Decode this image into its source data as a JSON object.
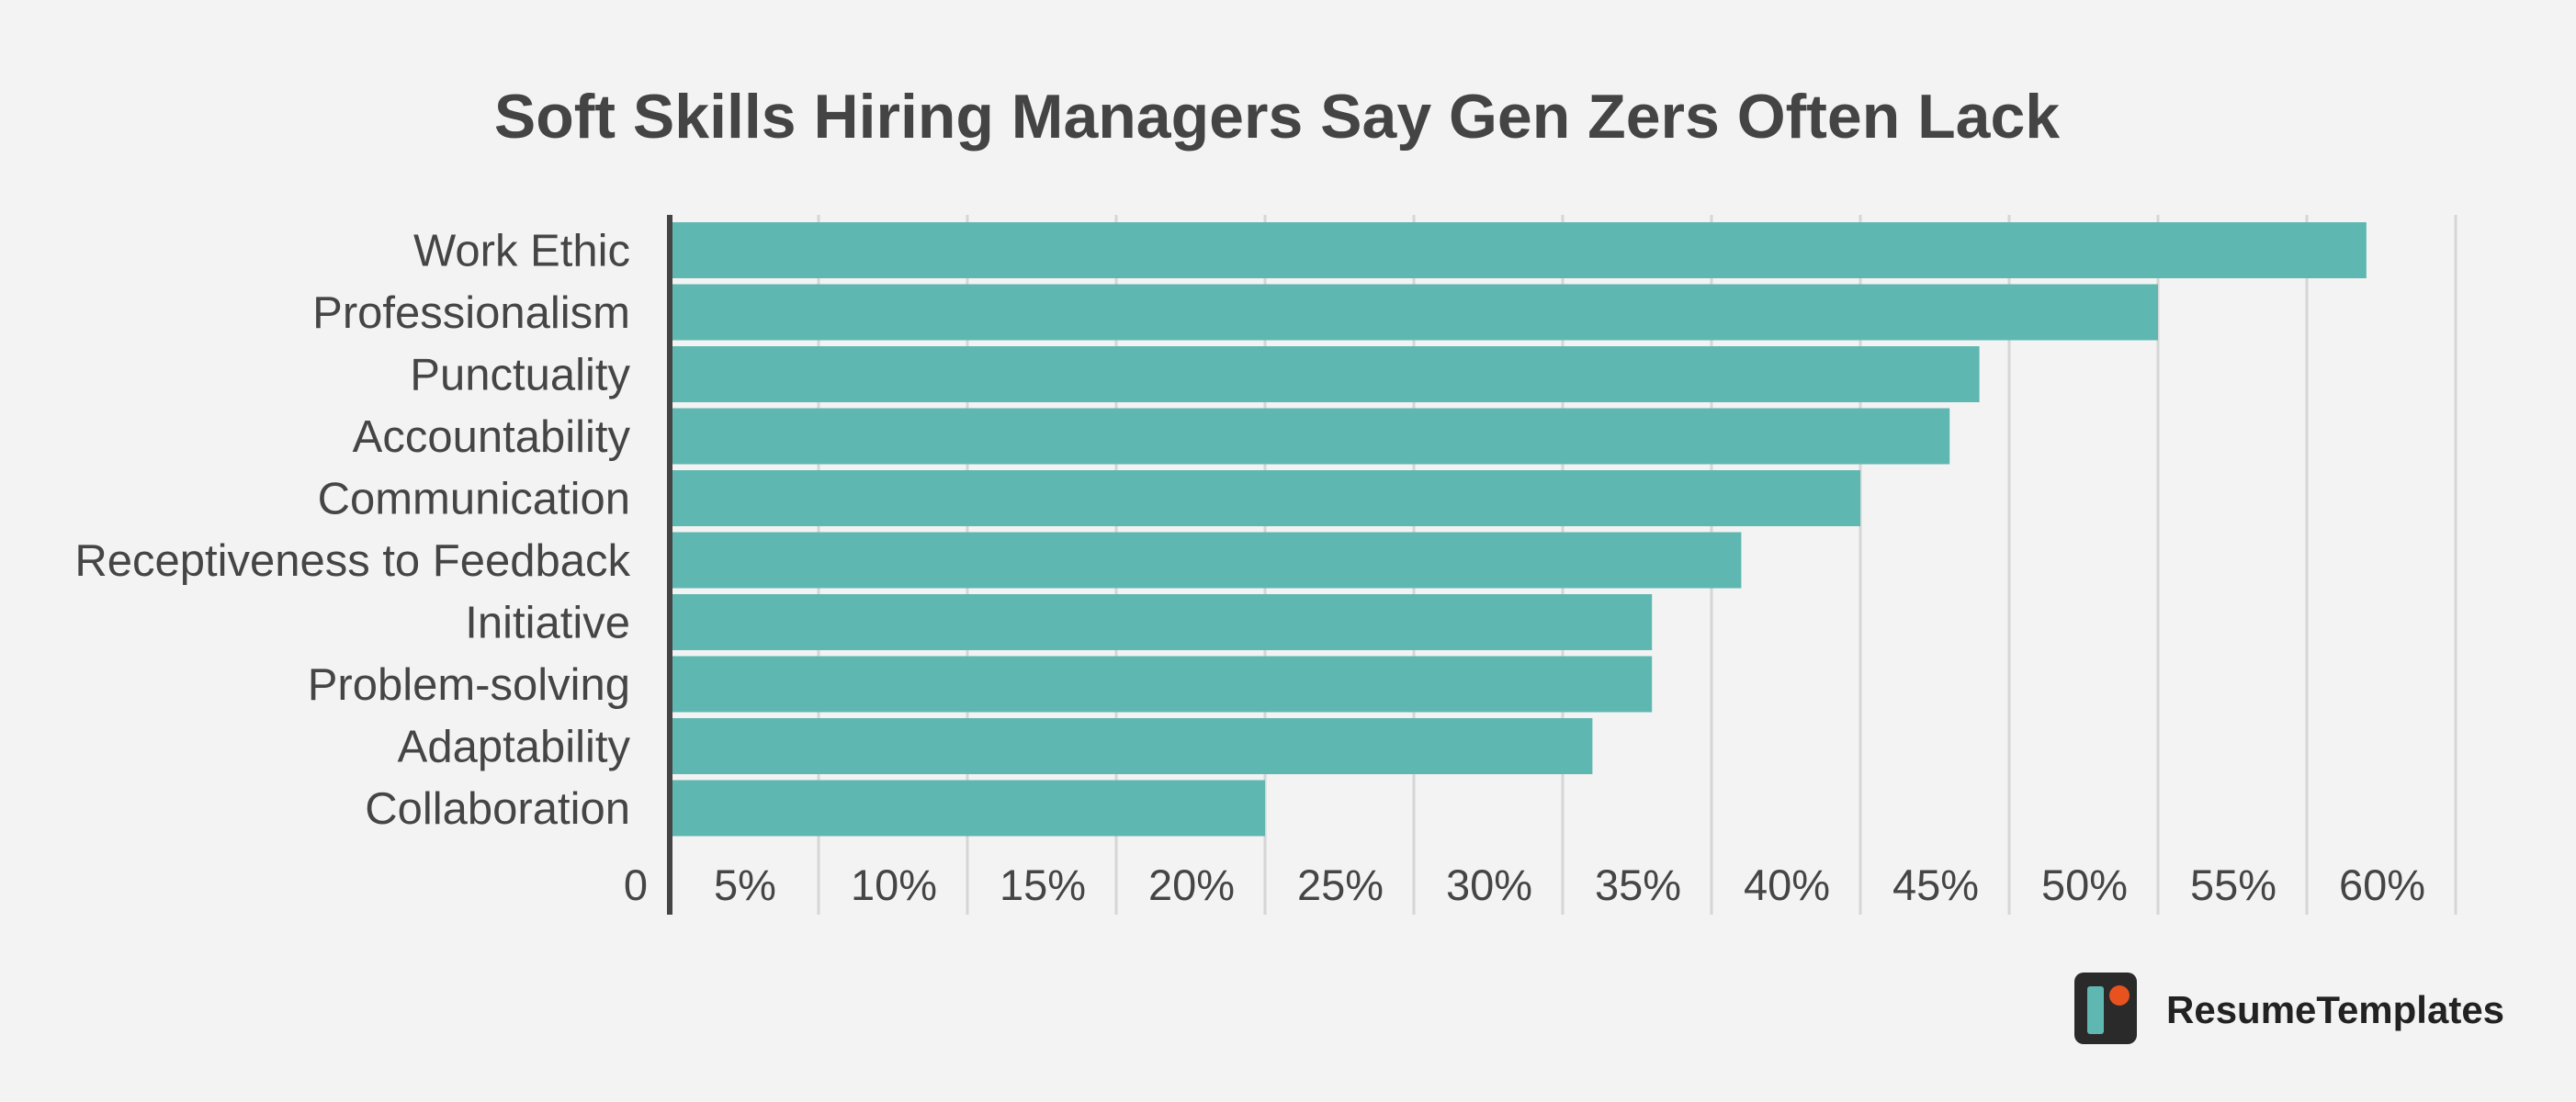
{
  "chart_data": {
    "type": "bar",
    "orientation": "horizontal",
    "title": "Soft Skills Hiring Managers Say Gen Zers Often Lack",
    "xlabel": "",
    "ylabel": "",
    "categories": [
      "Work Ethic",
      "Professionalism",
      "Punctuality",
      "Accountability",
      "Communication",
      "Receptiveness to Feedback",
      "Initiative",
      "Problem-solving",
      "Adaptability",
      "Collaboration"
    ],
    "values": [
      57,
      50,
      44,
      43,
      40,
      36,
      33,
      33,
      31,
      20
    ],
    "xlim": [
      0,
      60
    ],
    "x_ticks": [
      0,
      5,
      10,
      15,
      20,
      25,
      30,
      35,
      40,
      45,
      50,
      55,
      60
    ],
    "x_tick_labels": [
      "0",
      "5%",
      "10%",
      "15%",
      "20%",
      "25%",
      "30%",
      "35%",
      "40%",
      "45%",
      "50%",
      "55%",
      "60%"
    ],
    "grid": true,
    "legend": "none",
    "colors": {
      "bar": "#5fb7b2",
      "grid": "#d6d6d6",
      "axis": "#444444",
      "background": "#f3f3f3"
    }
  },
  "branding": {
    "name": "ResumeTemplates",
    "icon": "resume-templates-logo-icon",
    "colors": {
      "icon_bg": "#2a2a2a",
      "icon_bar": "#5fb7b2",
      "icon_dot": "#e8521f"
    }
  }
}
